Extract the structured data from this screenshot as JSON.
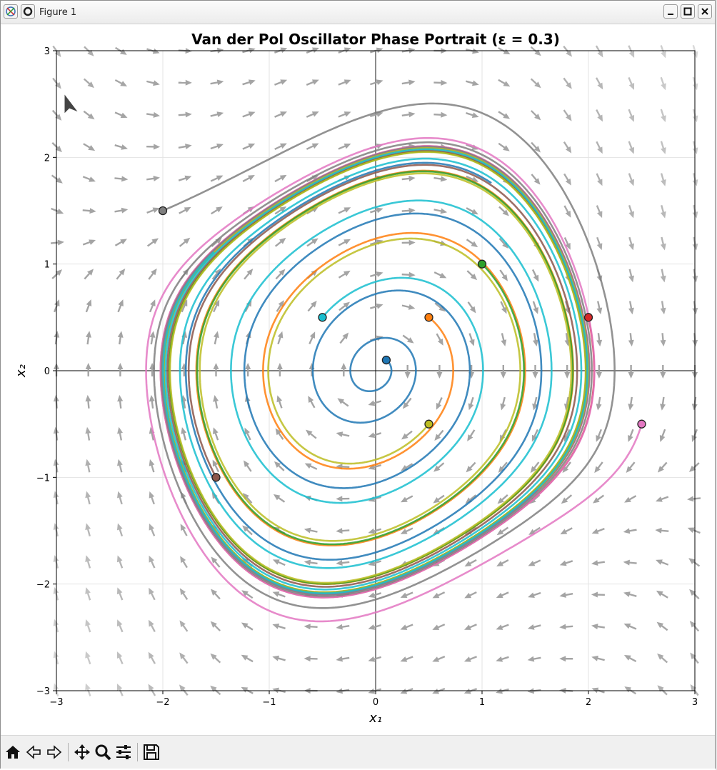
{
  "window": {
    "title": "Figure 1",
    "min_label": "_",
    "max_label": "▢",
    "close_label": "✕"
  },
  "toolbar": {
    "tools": [
      "home-icon",
      "back-icon",
      "forward-icon",
      "pan-icon",
      "zoom-icon",
      "configure-subplots-icon",
      "save-icon"
    ]
  },
  "chart_data": {
    "type": "line",
    "title": "Van der Pol Oscillator Phase Portrait (ε = 0.3)",
    "xlabel": "x₁",
    "ylabel": "x₂",
    "xlim": [
      -3,
      3
    ],
    "ylim": [
      -3,
      3
    ],
    "xticks": [
      "−3",
      "−2",
      "−1",
      "0",
      "1",
      "2",
      "3"
    ],
    "yticks": [
      "−3",
      "−2",
      "−1",
      "0",
      "1",
      "2",
      "3"
    ],
    "grid": true,
    "epsilon": 0.3,
    "vector_field": {
      "grid_n": 21,
      "color": "#a0a0a0"
    },
    "series": [
      {
        "start": [
          0.1,
          0.1
        ],
        "color": "#1f77b4"
      },
      {
        "start": [
          0.5,
          0.5
        ],
        "color": "#ff7f0e"
      },
      {
        "start": [
          1.0,
          1.0
        ],
        "color": "#2ca02c"
      },
      {
        "start": [
          2.0,
          0.5
        ],
        "color": "#d62728"
      },
      {
        "start": [
          -1.5,
          -1.0
        ],
        "color": "#8c564b"
      },
      {
        "start": [
          2.5,
          -0.5
        ],
        "color": "#e377c2"
      },
      {
        "start": [
          -2.0,
          1.5
        ],
        "color": "#7f7f7f"
      },
      {
        "start": [
          0.5,
          -0.5
        ],
        "color": "#bcbd22"
      },
      {
        "start": [
          -0.5,
          0.5
        ],
        "color": "#17becf"
      }
    ]
  }
}
